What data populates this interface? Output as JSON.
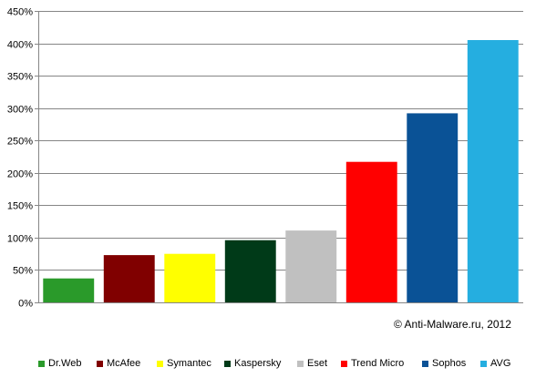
{
  "chart_data": {
    "type": "bar",
    "categories": [
      "Dr.Web",
      "McAfee",
      "Symantec",
      "Kaspersky",
      "Eset",
      "Trend Micro",
      "Sophos",
      "AVG"
    ],
    "values": [
      37,
      73,
      75,
      96,
      111,
      217,
      292,
      405
    ],
    "colors": [
      "#2a9a2a",
      "#800000",
      "#ffff00",
      "#003a18",
      "#c0c0c0",
      "#ff0000",
      "#0a5296",
      "#25aee0"
    ],
    "ylim": [
      0,
      450
    ],
    "yticks": [
      0,
      50,
      100,
      150,
      200,
      250,
      300,
      350,
      400,
      450
    ],
    "ytick_labels": [
      "0%",
      "50%",
      "100%",
      "150%",
      "200%",
      "250%",
      "300%",
      "350%",
      "400%",
      "450%"
    ],
    "grid": true,
    "legend_position": "bottom",
    "title": "",
    "xlabel": "",
    "ylabel": ""
  },
  "annotation": "© Anti-Malware.ru,  2012"
}
